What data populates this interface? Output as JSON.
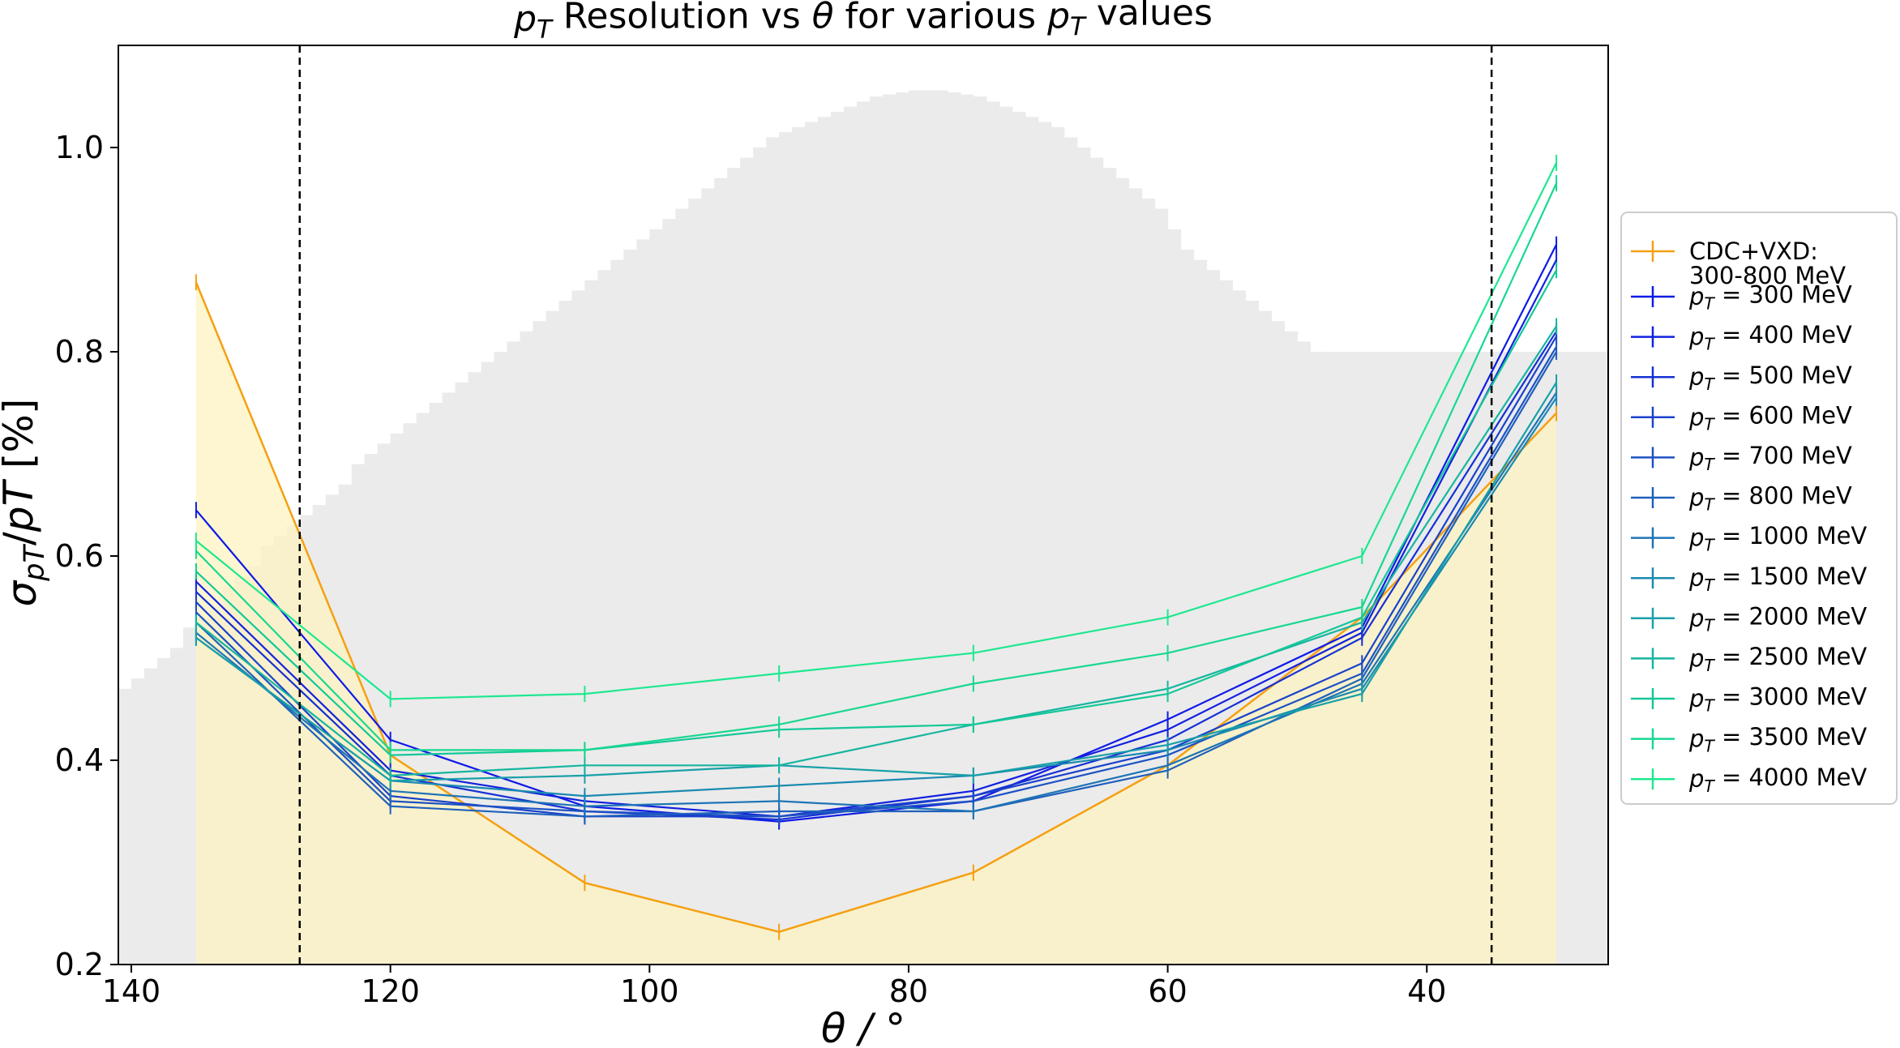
{
  "chart_data": {
    "type": "line",
    "title": "p_T Resolution vs θ for various p_T values",
    "xlabel": "θ / °",
    "ylabel": "σ_pT/pT [%]",
    "xlim": [
      141,
      26
    ],
    "ylim": [
      0.2,
      1.1
    ],
    "x_ticks": [
      140,
      120,
      100,
      80,
      60,
      40
    ],
    "y_ticks": [
      0.2,
      0.4,
      0.6,
      0.8,
      1.0
    ],
    "x_tick_labels": [
      "140",
      "120",
      "100",
      "80",
      "60",
      "40"
    ],
    "y_tick_labels": [
      "0.2",
      "0.4",
      "0.6",
      "0.8",
      "1.0"
    ],
    "vlines": [
      127,
      35
    ],
    "legend_position": "right, outside",
    "x": [
      135,
      120,
      105,
      90,
      75,
      60,
      45,
      30
    ],
    "reference": {
      "name": "CDC+VXD: 300-800 MeV",
      "name_lines": [
        "CDC+VXD:",
        "300-800 MeV"
      ],
      "color": "#f5a012",
      "fill_color": "#fdf3c0",
      "values": [
        0.868,
        0.405,
        0.28,
        0.232,
        0.29,
        0.395,
        0.54,
        0.74
      ]
    },
    "series": [
      {
        "name": "p_T = 300 MeV",
        "color": "#0f1be6",
        "values": [
          0.645,
          0.42,
          0.355,
          0.34,
          0.36,
          0.44,
          0.53,
          0.905
        ]
      },
      {
        "name": "p_T = 400 MeV",
        "color": "#1221de",
        "values": [
          0.575,
          0.39,
          0.36,
          0.345,
          0.37,
          0.43,
          0.525,
          0.89
        ]
      },
      {
        "name": "p_T = 500 MeV",
        "color": "#1530d4",
        "values": [
          0.565,
          0.385,
          0.35,
          0.342,
          0.365,
          0.42,
          0.52,
          0.82
        ]
      },
      {
        "name": "p_T = 600 MeV",
        "color": "#1a42cc",
        "values": [
          0.555,
          0.365,
          0.345,
          0.345,
          0.365,
          0.41,
          0.495,
          0.815
        ]
      },
      {
        "name": "p_T = 700 MeV",
        "color": "#1d52c4",
        "values": [
          0.545,
          0.36,
          0.35,
          0.345,
          0.36,
          0.405,
          0.485,
          0.805
        ]
      },
      {
        "name": "p_T = 800 MeV",
        "color": "#1f60bc",
        "values": [
          0.535,
          0.355,
          0.345,
          0.35,
          0.35,
          0.39,
          0.48,
          0.8
        ]
      },
      {
        "name": "p_T = 1000 MeV",
        "color": "#1e74b6",
        "values": [
          0.525,
          0.37,
          0.355,
          0.36,
          0.35,
          0.395,
          0.475,
          0.76
        ]
      },
      {
        "name": "p_T = 1500 MeV",
        "color": "#1a8ab0",
        "values": [
          0.52,
          0.38,
          0.365,
          0.375,
          0.385,
          0.41,
          0.47,
          0.755
        ]
      },
      {
        "name": "p_T = 2000 MeV",
        "color": "#18a0a8",
        "values": [
          0.52,
          0.38,
          0.385,
          0.395,
          0.385,
          0.415,
          0.465,
          0.77
        ]
      },
      {
        "name": "p_T = 2500 MeV",
        "color": "#16b5a0",
        "values": [
          0.535,
          0.385,
          0.395,
          0.395,
          0.435,
          0.47,
          0.535,
          0.825
        ]
      },
      {
        "name": "p_T = 3000 MeV",
        "color": "#14c898",
        "values": [
          0.585,
          0.405,
          0.41,
          0.43,
          0.435,
          0.465,
          0.54,
          0.88
        ]
      },
      {
        "name": "p_T = 3500 MeV",
        "color": "#18d890",
        "values": [
          0.605,
          0.41,
          0.41,
          0.435,
          0.475,
          0.505,
          0.55,
          0.965
        ]
      },
      {
        "name": "p_T = 4000 MeV",
        "color": "#1ee890",
        "values": [
          0.615,
          0.46,
          0.465,
          0.485,
          0.505,
          0.54,
          0.6,
          0.985
        ]
      }
    ],
    "background_histogram": {
      "color": "#ebebeb",
      "x_start": 141,
      "bin_width": 1.0,
      "values": [
        0.47,
        0.48,
        0.49,
        0.5,
        0.51,
        0.53,
        0.54,
        0.55,
        0.57,
        0.58,
        0.59,
        0.61,
        0.62,
        0.63,
        0.64,
        0.65,
        0.66,
        0.67,
        0.69,
        0.7,
        0.71,
        0.72,
        0.73,
        0.74,
        0.75,
        0.76,
        0.77,
        0.78,
        0.79,
        0.8,
        0.81,
        0.82,
        0.83,
        0.84,
        0.85,
        0.86,
        0.87,
        0.88,
        0.89,
        0.9,
        0.91,
        0.92,
        0.93,
        0.94,
        0.95,
        0.96,
        0.97,
        0.98,
        0.99,
        1.0,
        1.01,
        1.015,
        1.02,
        1.025,
        1.03,
        1.035,
        1.04,
        1.045,
        1.05,
        1.052,
        1.054,
        1.056,
        1.056,
        1.056,
        1.054,
        1.052,
        1.05,
        1.045,
        1.04,
        1.035,
        1.03,
        1.025,
        1.02,
        1.01,
        1.0,
        0.99,
        0.98,
        0.97,
        0.96,
        0.95,
        0.94,
        0.92,
        0.9,
        0.89,
        0.88,
        0.87,
        0.86,
        0.85,
        0.84,
        0.83,
        0.82,
        0.81,
        0.8,
        0.8,
        0.8,
        0.8,
        0.8,
        0.8,
        0.8,
        0.8,
        0.8,
        0.8,
        0.8,
        0.8,
        0.8,
        0.8,
        0.8,
        0.8,
        0.8,
        0.8,
        0.8,
        0.8,
        0.8,
        0.8,
        0.8
      ]
    }
  }
}
